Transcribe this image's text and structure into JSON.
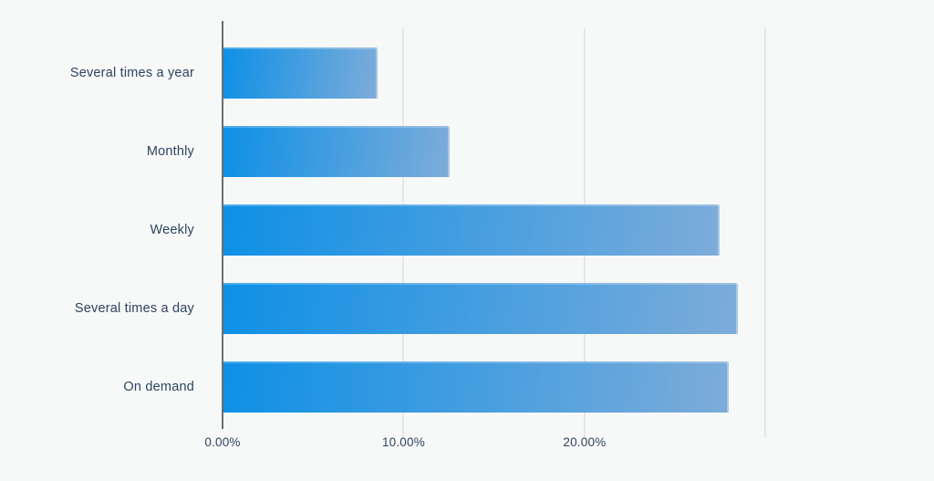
{
  "chart_data": {
    "type": "bar",
    "orientation": "horizontal",
    "title": "",
    "xlabel": "",
    "ylabel": "",
    "categories": [
      "Several times a year",
      "Monthly",
      "Weekly",
      "Several times a day",
      "On demand"
    ],
    "values": [
      8.5,
      12.5,
      27.4,
      28.4,
      27.9
    ],
    "value_unit": "percent",
    "value_labels_shown": false,
    "axis": {
      "min": 0,
      "max": 32,
      "ticks": [
        {
          "value": 0,
          "label": "0.00%"
        },
        {
          "value": 10,
          "label": "10.00%"
        },
        {
          "value": 20,
          "label": "20.00%"
        },
        {
          "value": 30,
          "label": ""
        }
      ]
    },
    "grid": true,
    "legend": false,
    "colors": {
      "bar_gradient_start": "#0e90e6",
      "bar_gradient_end": "#7dacd9",
      "background": "#f7f8f8",
      "label_text": "#2d4460",
      "axis_line": "#6a6d72",
      "gridline": "#e6e7e9"
    }
  }
}
